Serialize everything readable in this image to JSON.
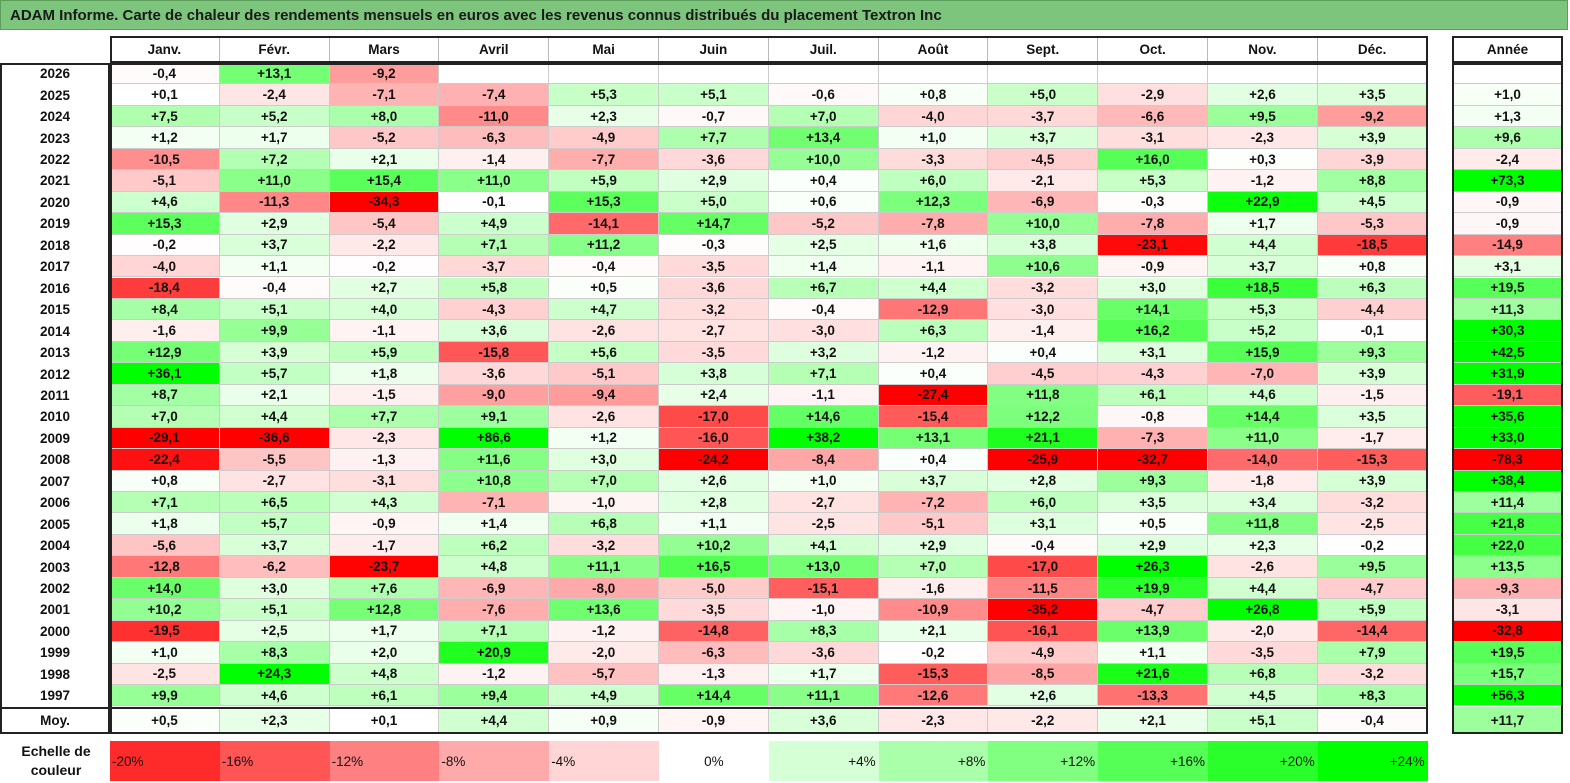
{
  "title": "ADAM Informe. Carte de chaleur des rendements mensuels en euros avec les revenus connus distribués du placement Textron Inc",
  "chart_data": {
    "type": "heatmap",
    "columns": [
      "Janv.",
      "Févr.",
      "Mars",
      "Avril",
      "Mai",
      "Juin",
      "Juil.",
      "Août",
      "Sept.",
      "Oct.",
      "Nov.",
      "Déc."
    ],
    "year_header": "Année",
    "rows": [
      {
        "year": "2026",
        "months": [
          "-0,4",
          "+13,1",
          "-9,2",
          "",
          "",
          "",
          "",
          "",
          "",
          "",
          "",
          ""
        ],
        "annual": ""
      },
      {
        "year": "2025",
        "months": [
          "+0,1",
          "-2,4",
          "-7,1",
          "-7,4",
          "+5,3",
          "+5,1",
          "-0,6",
          "+0,8",
          "+5,0",
          "-2,9",
          "+2,6",
          "+3,5"
        ],
        "annual": "+1,0"
      },
      {
        "year": "2024",
        "months": [
          "+7,5",
          "+5,2",
          "+8,0",
          "-11,0",
          "+2,3",
          "-0,7",
          "+7,0",
          "-4,0",
          "-3,7",
          "-6,6",
          "+9,5",
          "-9,2"
        ],
        "annual": "+1,3"
      },
      {
        "year": "2023",
        "months": [
          "+1,2",
          "+1,7",
          "-5,2",
          "-6,3",
          "-4,9",
          "+7,7",
          "+13,4",
          "+1,0",
          "+3,7",
          "-3,1",
          "-2,3",
          "+3,9"
        ],
        "annual": "+9,6"
      },
      {
        "year": "2022",
        "months": [
          "-10,5",
          "+7,2",
          "+2,1",
          "-1,4",
          "-7,7",
          "-3,6",
          "+10,0",
          "-3,3",
          "-4,5",
          "+16,0",
          "+0,3",
          "-3,9"
        ],
        "annual": "-2,4"
      },
      {
        "year": "2021",
        "months": [
          "-5,1",
          "+11,0",
          "+15,4",
          "+11,0",
          "+5,9",
          "+2,9",
          "+0,4",
          "+6,0",
          "-2,1",
          "+5,3",
          "-1,2",
          "+8,8"
        ],
        "annual": "+73,3"
      },
      {
        "year": "2020",
        "months": [
          "+4,6",
          "-11,3",
          "-34,3",
          "-0,1",
          "+15,3",
          "+5,0",
          "+0,6",
          "+12,3",
          "-6,9",
          "-0,3",
          "+22,9",
          "+4,5"
        ],
        "annual": "-0,9"
      },
      {
        "year": "2019",
        "months": [
          "+15,3",
          "+2,9",
          "-5,4",
          "+4,9",
          "-14,1",
          "+14,7",
          "-5,2",
          "-7,8",
          "+10,0",
          "-7,8",
          "+1,7",
          "-5,3"
        ],
        "annual": "-0,9"
      },
      {
        "year": "2018",
        "months": [
          "-0,2",
          "+3,7",
          "-2,2",
          "+7,1",
          "+11,2",
          "-0,3",
          "+2,5",
          "+1,6",
          "+3,8",
          "-23,1",
          "+4,4",
          "-18,5"
        ],
        "annual": "-14,9"
      },
      {
        "year": "2017",
        "months": [
          "-4,0",
          "+1,1",
          "-0,2",
          "-3,7",
          "-0,4",
          "-3,5",
          "+1,4",
          "-1,1",
          "+10,6",
          "-0,9",
          "+3,7",
          "+0,8"
        ],
        "annual": "+3,1"
      },
      {
        "year": "2016",
        "months": [
          "-18,4",
          "-0,4",
          "+2,7",
          "+5,8",
          "+0,5",
          "-3,6",
          "+6,7",
          "+4,4",
          "-3,2",
          "+3,0",
          "+18,5",
          "+6,3"
        ],
        "annual": "+19,5"
      },
      {
        "year": "2015",
        "months": [
          "+8,4",
          "+5,1",
          "+4,0",
          "-4,3",
          "+4,7",
          "-3,2",
          "-0,4",
          "-12,9",
          "-3,0",
          "+14,1",
          "+5,3",
          "-4,4"
        ],
        "annual": "+11,3"
      },
      {
        "year": "2014",
        "months": [
          "-1,6",
          "+9,9",
          "-1,1",
          "+3,6",
          "-2,6",
          "-2,7",
          "-3,0",
          "+6,3",
          "-1,4",
          "+16,2",
          "+5,2",
          "-0,1"
        ],
        "annual": "+30,3"
      },
      {
        "year": "2013",
        "months": [
          "+12,9",
          "+3,9",
          "+5,9",
          "-15,8",
          "+5,6",
          "-3,5",
          "+3,2",
          "-1,2",
          "+0,4",
          "+3,1",
          "+15,9",
          "+9,3"
        ],
        "annual": "+42,5"
      },
      {
        "year": "2012",
        "months": [
          "+36,1",
          "+5,7",
          "+1,8",
          "-3,6",
          "-5,1",
          "+3,8",
          "+7,1",
          "+0,4",
          "-4,5",
          "-4,3",
          "-7,0",
          "+3,9"
        ],
        "annual": "+31,9"
      },
      {
        "year": "2011",
        "months": [
          "+8,7",
          "+2,1",
          "-1,5",
          "-9,0",
          "-9,4",
          "+2,4",
          "-1,1",
          "-27,4",
          "+11,8",
          "+6,1",
          "+4,6",
          "-1,5"
        ],
        "annual": "-19,1"
      },
      {
        "year": "2010",
        "months": [
          "+7,0",
          "+4,4",
          "+7,7",
          "+9,1",
          "-2,6",
          "-17,0",
          "+14,6",
          "-15,4",
          "+12,2",
          "-0,8",
          "+14,4",
          "+3,5"
        ],
        "annual": "+35,6"
      },
      {
        "year": "2009",
        "months": [
          "-29,1",
          "-36,6",
          "-2,3",
          "+86,6",
          "+1,2",
          "-16,0",
          "+38,2",
          "+13,1",
          "+21,1",
          "-7,3",
          "+11,0",
          "-1,7"
        ],
        "annual": "+33,0"
      },
      {
        "year": "2008",
        "months": [
          "-22,4",
          "-5,5",
          "-1,3",
          "+11,6",
          "+3,0",
          "-24,2",
          "-8,4",
          "+0,4",
          "-25,9",
          "-32,7",
          "-14,0",
          "-15,3"
        ],
        "annual": "-78,3"
      },
      {
        "year": "2007",
        "months": [
          "+0,8",
          "-2,7",
          "-3,1",
          "+10,8",
          "+7,0",
          "+2,6",
          "+1,0",
          "+3,7",
          "+2,8",
          "+9,3",
          "-1,8",
          "+3,9"
        ],
        "annual": "+38,4"
      },
      {
        "year": "2006",
        "months": [
          "+7,1",
          "+6,5",
          "+4,3",
          "-7,1",
          "-1,0",
          "+2,8",
          "-2,7",
          "-7,2",
          "+6,0",
          "+3,5",
          "+3,4",
          "-3,2"
        ],
        "annual": "+11,4"
      },
      {
        "year": "2005",
        "months": [
          "+1,8",
          "+5,7",
          "-0,9",
          "+1,4",
          "+6,8",
          "+1,1",
          "-2,5",
          "-5,1",
          "+3,1",
          "+0,5",
          "+11,8",
          "-2,5"
        ],
        "annual": "+21,8"
      },
      {
        "year": "2004",
        "months": [
          "-5,6",
          "+3,7",
          "-1,7",
          "+6,2",
          "-3,2",
          "+10,2",
          "+4,1",
          "+2,9",
          "-0,4",
          "+2,9",
          "+2,3",
          "-0,2"
        ],
        "annual": "+22,0"
      },
      {
        "year": "2003",
        "months": [
          "-12,8",
          "-6,2",
          "-23,7",
          "+4,8",
          "+11,1",
          "+16,5",
          "+13,0",
          "+7,0",
          "-17,0",
          "+26,3",
          "-2,6",
          "+9,5"
        ],
        "annual": "+13,5"
      },
      {
        "year": "2002",
        "months": [
          "+14,0",
          "+3,0",
          "+7,6",
          "-6,9",
          "-8,0",
          "-5,0",
          "-15,1",
          "-1,6",
          "-11,5",
          "+19,9",
          "+4,4",
          "-4,7"
        ],
        "annual": "-9,3"
      },
      {
        "year": "2001",
        "months": [
          "+10,2",
          "+5,1",
          "+12,8",
          "-7,6",
          "+13,6",
          "-3,5",
          "-1,0",
          "-10,9",
          "-35,2",
          "-4,7",
          "+26,8",
          "+5,9"
        ],
        "annual": "-3,1"
      },
      {
        "year": "2000",
        "months": [
          "-19,5",
          "+2,5",
          "+1,7",
          "+7,1",
          "-1,2",
          "-14,8",
          "+8,3",
          "+2,1",
          "-16,1",
          "+13,9",
          "-2,0",
          "-14,4"
        ],
        "annual": "-32,8"
      },
      {
        "year": "1999",
        "months": [
          "+1,0",
          "+8,3",
          "+2,0",
          "+20,9",
          "-2,0",
          "-6,3",
          "-3,6",
          "-0,2",
          "-4,9",
          "+1,1",
          "-3,5",
          "+7,9"
        ],
        "annual": "+19,5"
      },
      {
        "year": "1998",
        "months": [
          "-2,5",
          "+24,3",
          "+4,8",
          "-1,2",
          "-5,7",
          "-1,3",
          "+1,7",
          "-15,3",
          "-8,5",
          "+21,6",
          "+6,8",
          "-3,2"
        ],
        "annual": "+15,7"
      },
      {
        "year": "1997",
        "months": [
          "+9,9",
          "+4,6",
          "+6,1",
          "+9,4",
          "+4,9",
          "+14,4",
          "+11,1",
          "-12,6",
          "+2,6",
          "-13,3",
          "+4,5",
          "+8,3"
        ],
        "annual": "+56,3"
      }
    ],
    "average": {
      "label": "Moy.",
      "months": [
        "+0,5",
        "+2,3",
        "+0,1",
        "+4,4",
        "+0,9",
        "-0,9",
        "+3,6",
        "-2,3",
        "-2,2",
        "+2,1",
        "+5,1",
        "-0,4"
      ],
      "annual": "+11,7"
    },
    "color_scale": {
      "label": "Echelle de couleur",
      "stops": [
        "-20%",
        "-16%",
        "-12%",
        "-8%",
        "-4%",
        "0%",
        "+4%",
        "+8%",
        "+12%",
        "+16%",
        "+20%",
        "+24%"
      ],
      "negative_color": "#ff0000",
      "neutral_color": "#ffffff",
      "positive_color": "#00ff00"
    }
  }
}
